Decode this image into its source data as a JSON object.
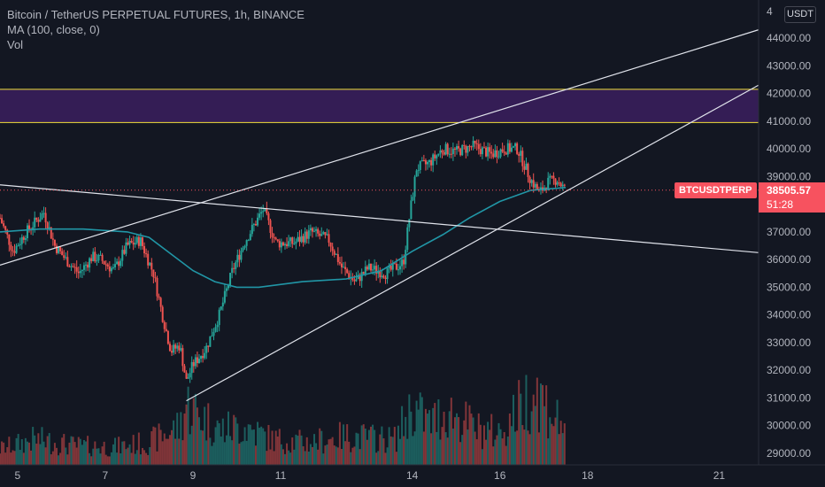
{
  "header": {
    "symbol_line": "Bitcoin / TetherUS PERPETUAL FUTURES, 1h, BINANCE",
    "ma_line": "MA (100, close, 0)",
    "vol_line": "Vol"
  },
  "currency_label": "USDT",
  "last_price": {
    "symbol": "BTCUSDTPERP",
    "value": "38505.57",
    "countdown": "51:28"
  },
  "colors": {
    "background": "#131722",
    "up": "#26a69a",
    "down": "#ef5350",
    "ma": "#2196a6",
    "zone_fill": "#3b1f5e",
    "zone_border": "#f2e03b",
    "trendline": "#e0e3eb",
    "price_tag": "#f7525f"
  },
  "chart_data": {
    "type": "candlestick",
    "interval": "1h",
    "x_tick_labels": [
      "5",
      "7",
      "9",
      "11",
      "14",
      "16",
      "18",
      "21"
    ],
    "y_tick_labels": [
      "29000.00",
      "30000.00",
      "31000.00",
      "32000.00",
      "33000.00",
      "34000.00",
      "35000.00",
      "36000.00",
      "37000.00",
      "38000.00",
      "39000.00",
      "40000.00",
      "41000.00",
      "42000.00",
      "43000.00",
      "44000.00"
    ],
    "y_top_label_partial": "4",
    "ylim": [
      28800,
      45000
    ],
    "xlim": [
      4.6,
      21.9
    ],
    "price_path": [
      [
        4.6,
        37500
      ],
      [
        4.9,
        36300
      ],
      [
        5.2,
        37000
      ],
      [
        5.6,
        37700
      ],
      [
        5.85,
        36500
      ],
      [
        6.1,
        36000
      ],
      [
        6.4,
        35500
      ],
      [
        6.7,
        36100
      ],
      [
        6.9,
        36000
      ],
      [
        7.2,
        35600
      ],
      [
        7.5,
        36500
      ],
      [
        7.8,
        36700
      ],
      [
        8.1,
        35500
      ],
      [
        8.3,
        34000
      ],
      [
        8.5,
        32700
      ],
      [
        8.7,
        32900
      ],
      [
        8.85,
        31600
      ],
      [
        9.0,
        32200
      ],
      [
        9.3,
        32800
      ],
      [
        9.6,
        34000
      ],
      [
        9.9,
        35600
      ],
      [
        10.2,
        36700
      ],
      [
        10.6,
        37800
      ],
      [
        10.9,
        36600
      ],
      [
        11.3,
        36600
      ],
      [
        11.7,
        37000
      ],
      [
        12.1,
        36700
      ],
      [
        12.4,
        35700
      ],
      [
        12.7,
        35200
      ],
      [
        13.0,
        35700
      ],
      [
        13.4,
        35500
      ],
      [
        13.6,
        35700
      ],
      [
        13.8,
        35900
      ],
      [
        13.95,
        37700
      ],
      [
        14.1,
        39300
      ],
      [
        14.4,
        39500
      ],
      [
        14.7,
        40000
      ],
      [
        15.0,
        39900
      ],
      [
        15.4,
        40100
      ],
      [
        15.8,
        39800
      ],
      [
        16.1,
        40000
      ],
      [
        16.4,
        40000
      ],
      [
        16.7,
        38900
      ],
      [
        16.9,
        38400
      ],
      [
        17.1,
        38800
      ],
      [
        17.3,
        38900
      ],
      [
        17.5,
        38500
      ]
    ],
    "ma_100": [
      [
        4.6,
        37000
      ],
      [
        5.5,
        37100
      ],
      [
        6.5,
        37100
      ],
      [
        7.5,
        37000
      ],
      [
        8.0,
        36800
      ],
      [
        8.5,
        36200
      ],
      [
        9.0,
        35600
      ],
      [
        9.5,
        35200
      ],
      [
        10.0,
        35000
      ],
      [
        10.5,
        35000
      ],
      [
        11.5,
        35200
      ],
      [
        12.5,
        35300
      ],
      [
        13.3,
        35600
      ],
      [
        14.0,
        36300
      ],
      [
        14.7,
        36900
      ],
      [
        15.3,
        37500
      ],
      [
        16.0,
        38100
      ],
      [
        16.7,
        38500
      ],
      [
        17.5,
        38600
      ]
    ],
    "volume": [
      {
        "x": 4.6,
        "v": 25
      },
      {
        "x": 5.4,
        "v": 40
      },
      {
        "x": 6.3,
        "v": 30
      },
      {
        "x": 7.2,
        "v": 28
      },
      {
        "x": 8.0,
        "v": 35
      },
      {
        "x": 8.7,
        "v": 60
      },
      {
        "x": 8.85,
        "v": 95
      },
      {
        "x": 9.6,
        "v": 55
      },
      {
        "x": 10.2,
        "v": 60
      },
      {
        "x": 10.8,
        "v": 40
      },
      {
        "x": 11.6,
        "v": 35
      },
      {
        "x": 12.5,
        "v": 45
      },
      {
        "x": 13.6,
        "v": 40
      },
      {
        "x": 14.0,
        "v": 90
      },
      {
        "x": 14.4,
        "v": 65
      },
      {
        "x": 14.8,
        "v": 85
      },
      {
        "x": 15.5,
        "v": 55
      },
      {
        "x": 16.0,
        "v": 50
      },
      {
        "x": 16.8,
        "v": 120
      },
      {
        "x": 17.3,
        "v": 70
      }
    ],
    "resistance_zone": {
      "low": 40950,
      "high": 42150
    },
    "trendlines": [
      {
        "from": [
          4.6,
          35800
        ],
        "to": [
          21.9,
          44300
        ]
      },
      {
        "from": [
          8.85,
          30900
        ],
        "to": [
          21.9,
          42300
        ]
      },
      {
        "from": [
          4.6,
          38700
        ],
        "to": [
          21.9,
          36250
        ]
      }
    ],
    "last_price_value": 38505.57
  }
}
